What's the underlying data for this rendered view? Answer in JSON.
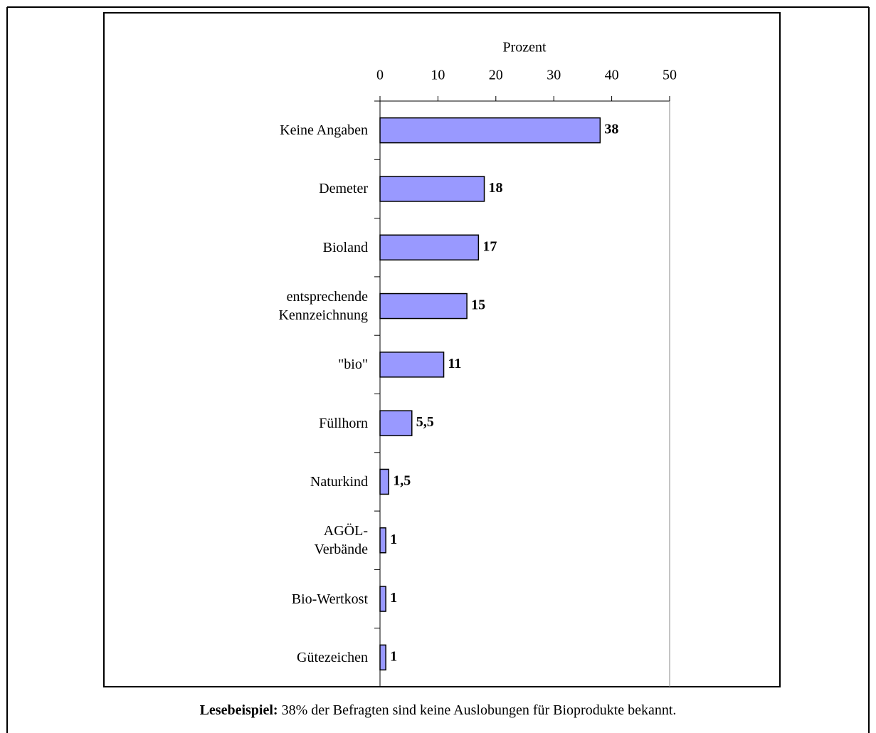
{
  "chart_data": {
    "type": "hbar",
    "x_label": "Prozent",
    "categories": [
      "Keine Angaben",
      "Demeter",
      "Bioland",
      "entsprechende\nKennzeichnung",
      "\"bio\"",
      "Füllhorn",
      "Naturkind",
      "AGÖL-\nVerbände",
      "Bio-Wertkost",
      "Gütezeichen"
    ],
    "values": [
      38,
      18,
      17,
      15,
      11,
      5.5,
      1.5,
      1,
      1,
      1
    ],
    "value_labels": [
      "38",
      "18",
      "17",
      "15",
      "11",
      "5,5",
      "1,5",
      "1",
      "1",
      "1"
    ],
    "color": "#9999ff",
    "xlim": [
      0,
      50
    ],
    "xticks": [
      0,
      10,
      20,
      30,
      40,
      50
    ]
  },
  "note": {
    "bold": "Lesebeispiel:",
    "text": "38% der Befragten sind keine Auslobungen für Bioprodukte bekannt."
  }
}
